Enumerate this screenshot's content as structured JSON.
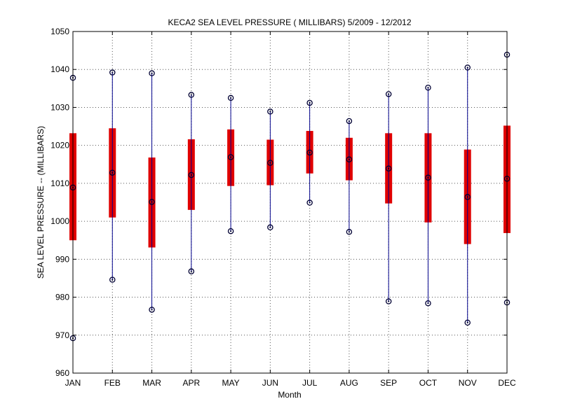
{
  "chart_data": {
    "type": "box",
    "title": "KECA2  SEA LEVEL PRESSURE ( MILLIBARS) 5/2009 - 12/2012",
    "xlabel": "Month",
    "ylabel": "SEA LEVEL PRESSURE -- (MILLIBARS)",
    "ylim": [
      960,
      1050
    ],
    "yticks": [
      960,
      970,
      980,
      990,
      1000,
      1010,
      1020,
      1030,
      1040,
      1050
    ],
    "grid": true,
    "categories": [
      "JAN",
      "FEB",
      "MAR",
      "APR",
      "MAY",
      "JUN",
      "JUL",
      "AUG",
      "SEP",
      "OCT",
      "NOV",
      "DEC"
    ],
    "max": [
      1037.8,
      1039.2,
      1039.0,
      1033.3,
      1032.5,
      1028.9,
      1031.2,
      1026.4,
      1033.5,
      1035.2,
      1040.5,
      1043.9
    ],
    "upper": [
      1023.2,
      1024.5,
      1016.8,
      1021.6,
      1024.2,
      1021.5,
      1023.8,
      1022.0,
      1023.2,
      1023.2,
      1018.9,
      1025.2
    ],
    "mean": [
      1008.9,
      1012.8,
      1005.1,
      1012.2,
      1016.9,
      1015.4,
      1018.1,
      1016.3,
      1013.9,
      1011.5,
      1006.4,
      1011.2
    ],
    "lower": [
      995.0,
      1001.0,
      993.1,
      1003.0,
      1009.3,
      1009.5,
      1012.6,
      1010.8,
      1004.7,
      999.7,
      994.0,
      996.9
    ],
    "min": [
      969.2,
      984.6,
      976.7,
      986.8,
      997.4,
      998.4,
      1004.9,
      997.2,
      978.9,
      978.4,
      973.3,
      978.6
    ],
    "colors": {
      "whisker": "#00008b",
      "box": "#e00000",
      "marker": "#000033",
      "grid": "#555555"
    }
  }
}
